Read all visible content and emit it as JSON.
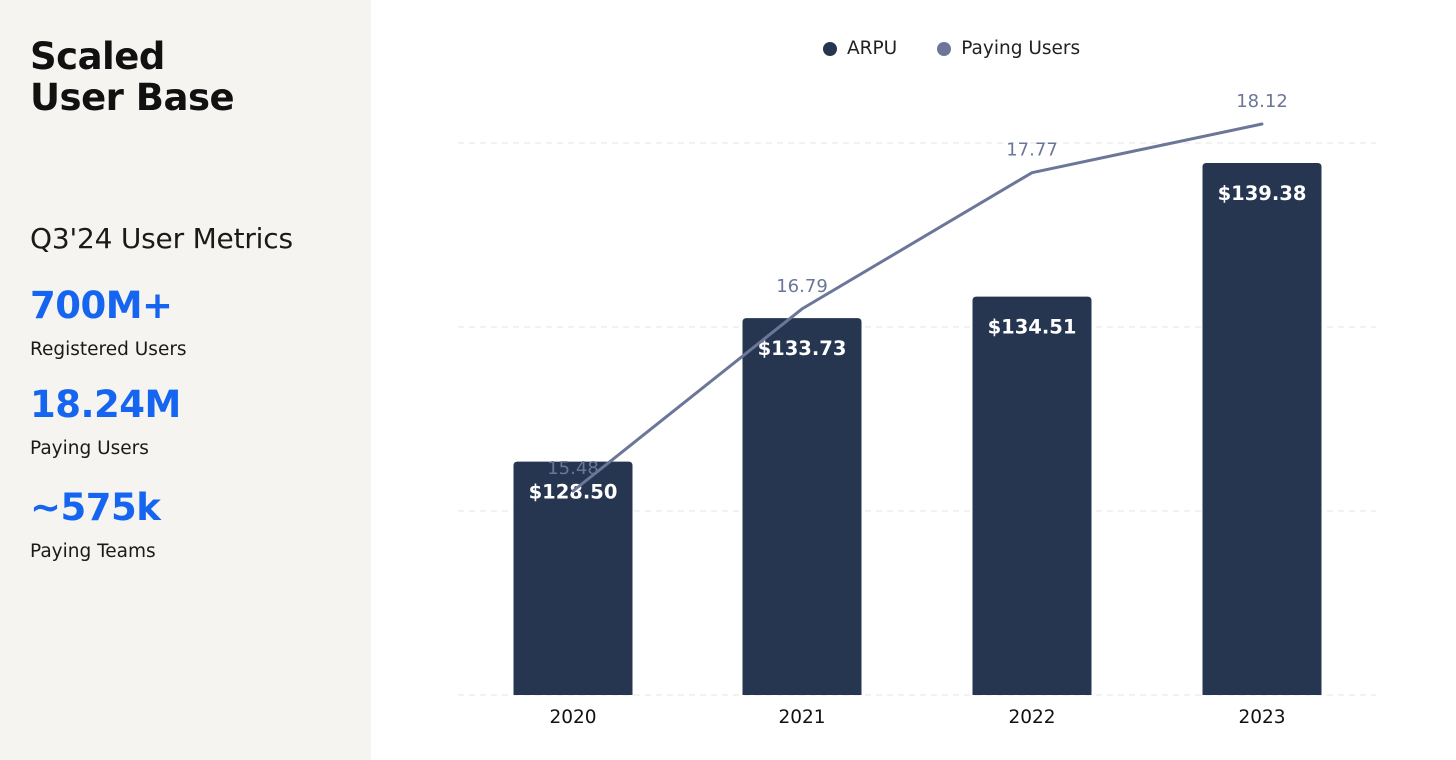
{
  "sidebar": {
    "title_line1": "Scaled",
    "title_line2": "User Base",
    "section_title": "Q3'24 User Metrics",
    "metrics": [
      {
        "value": "700M+",
        "label": "Registered Users"
      },
      {
        "value": "18.24M",
        "label": "Paying Users"
      },
      {
        "value": "~575k",
        "label": "Paying Teams"
      }
    ]
  },
  "legend": {
    "arpu": "ARPU",
    "paying_users": "Paying Users"
  },
  "colors": {
    "bar": "#263650",
    "line": "#6b7699",
    "accent": "#1565f0",
    "sidebar_bg": "#f5f4f0"
  },
  "chart_data": {
    "type": "bar",
    "categories": [
      "2020",
      "2021",
      "2022",
      "2023"
    ],
    "series": [
      {
        "name": "ARPU",
        "type": "bar",
        "values": [
          128.5,
          133.73,
          134.51,
          139.38
        ],
        "labels": [
          "$128.50",
          "$133.73",
          "$134.51",
          "$139.38"
        ],
        "ylim": [
          120,
          142
        ]
      },
      {
        "name": "Paying Users",
        "type": "line",
        "values": [
          15.48,
          16.79,
          17.77,
          18.12
        ],
        "labels": [
          "15.48",
          "16.79",
          "17.77",
          "18.12"
        ],
        "ylim": [
          14.5,
          18.6
        ]
      }
    ],
    "grid": true,
    "legend_position": "top-center"
  }
}
